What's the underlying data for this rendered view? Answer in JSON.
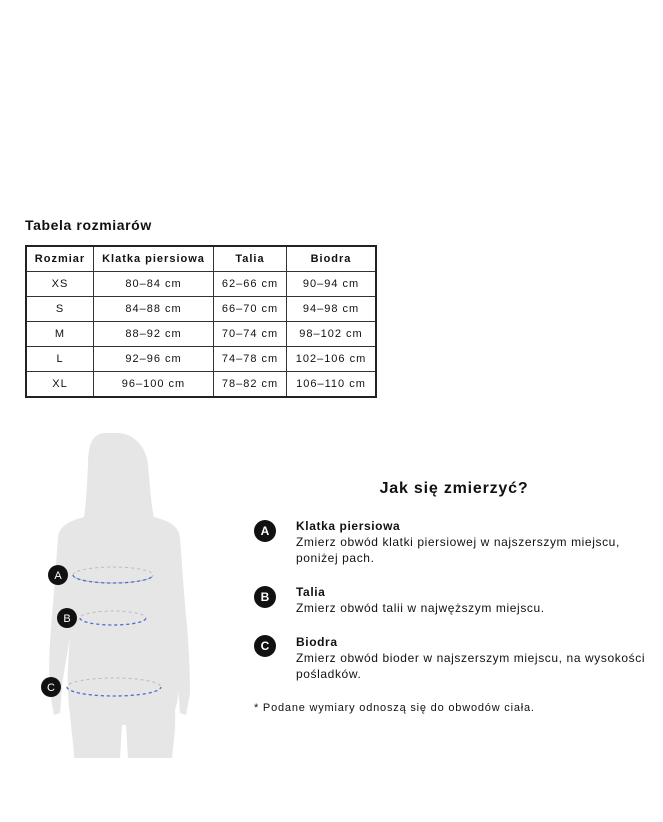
{
  "size_table": {
    "title": "Tabela rozmiarów",
    "headers": [
      "Rozmiar",
      "Klatka piersiowa",
      "Talia",
      "Biodra"
    ],
    "rows": [
      [
        "XS",
        "80–84 cm",
        "62–66 cm",
        "90–94 cm"
      ],
      [
        "S",
        "84–88 cm",
        "66–70 cm",
        "94–98 cm"
      ],
      [
        "M",
        "88–92 cm",
        "70–74 cm",
        "98–102 cm"
      ],
      [
        "L",
        "92–96 cm",
        "74–78 cm",
        "102–106 cm"
      ],
      [
        "XL",
        "96–100 cm",
        "78–82 cm",
        "106–110 cm"
      ]
    ]
  },
  "figure": {
    "markers": [
      "A",
      "B",
      "C"
    ],
    "silhouette_color": "#e6e6e6",
    "line_color": "#4a6fd8"
  },
  "howto": {
    "title": "Jak się zmierzyć?",
    "items": [
      {
        "badge": "A",
        "label": "Klatka piersiowa",
        "line1": "Zmierz obwód klatki piersiowej w najszerszym miejscu,",
        "line2": "poniżej pach."
      },
      {
        "badge": "B",
        "label": "Talia",
        "line1": "Zmierz obwód talii w najwęższym miejscu."
      },
      {
        "badge": "C",
        "label": "Biodra",
        "line1": "Zmierz obwód bioder w najszerszym miejscu, na wysokości",
        "line2": "pośladków."
      }
    ],
    "note": "* Podane wymiary odnoszą się do obwodów ciała."
  }
}
